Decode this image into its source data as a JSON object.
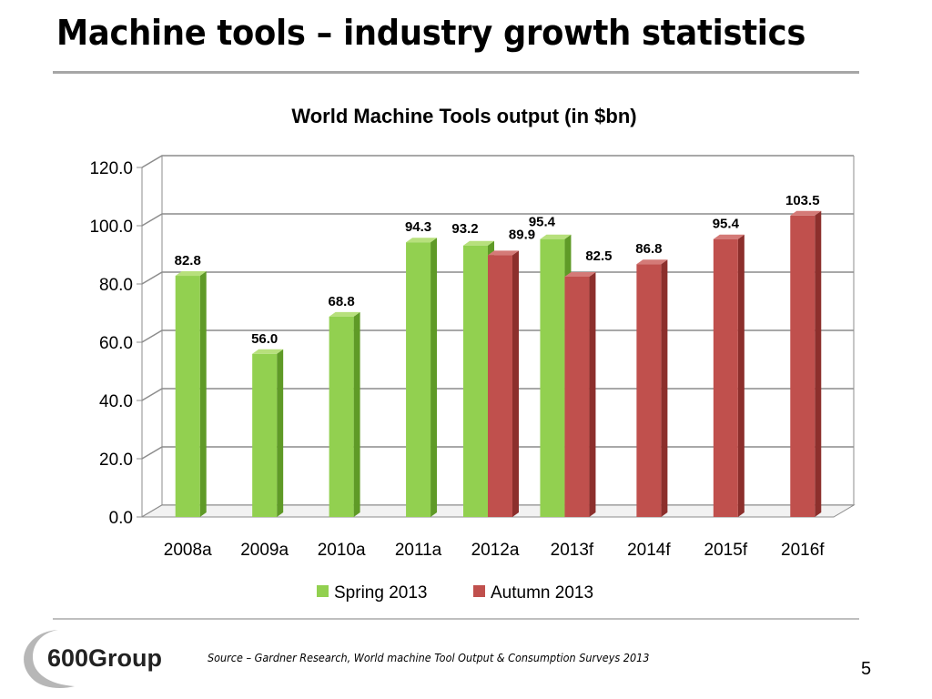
{
  "slide": {
    "title": "Machine tools – industry growth statistics",
    "source": "Source – Gardner Research, World machine Tool Output & Consumption Surveys 2013",
    "page_number": "5",
    "logo_text": "600Group"
  },
  "colors": {
    "spring": "#92d050",
    "spring_side": "#5f9a27",
    "spring_top": "#b7e07c",
    "autumn": "#c0504d",
    "autumn_side": "#8c2f2c",
    "autumn_top": "#d47a77"
  },
  "chart_data": {
    "type": "bar",
    "title": "World Machine Tools output (in $bn)",
    "categories": [
      "2008a",
      "2009a",
      "2010a",
      "2011a",
      "2012a",
      "2013f",
      "2014f",
      "2015f",
      "2016f"
    ],
    "series": [
      {
        "name": "Spring 2013",
        "values": [
          82.8,
          56.0,
          68.8,
          94.3,
          93.2,
          95.4,
          null,
          null,
          null
        ]
      },
      {
        "name": "Autumn 2013",
        "values": [
          null,
          null,
          null,
          null,
          89.9,
          82.5,
          86.8,
          95.4,
          103.5
        ]
      }
    ],
    "ylim": [
      0,
      120
    ],
    "yticks": [
      "0.0",
      "20.0",
      "40.0",
      "60.0",
      "80.0",
      "100.0",
      "120.0"
    ],
    "grid": true,
    "legend": "bottom",
    "style": "3d-column"
  }
}
